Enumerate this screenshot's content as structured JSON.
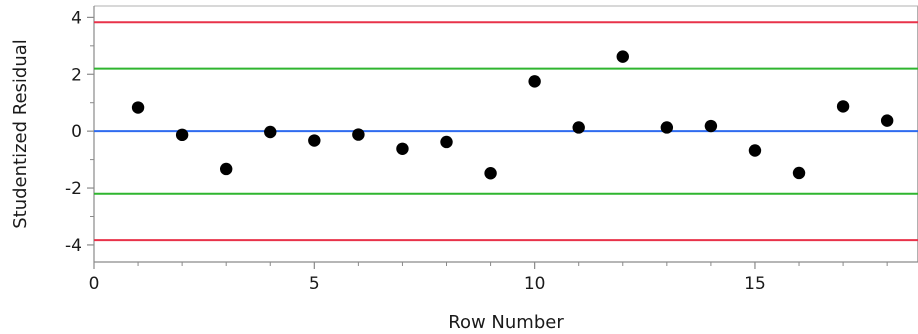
{
  "chart_data": {
    "type": "scatter",
    "xlabel": "Row Number",
    "ylabel": "Studentized Residual",
    "xlim": [
      0,
      18.7
    ],
    "ylim": [
      -4.6,
      4.4
    ],
    "x_ticks": [
      0,
      5,
      10,
      15
    ],
    "y_ticks": [
      -4,
      -2,
      0,
      2,
      4
    ],
    "grid": false,
    "reference_lines": [
      {
        "y": 3.83,
        "color": "#e8324a"
      },
      {
        "y": 2.2,
        "color": "#2fb52f"
      },
      {
        "y": 0,
        "color": "#2f6bef"
      },
      {
        "y": -2.2,
        "color": "#2fb52f"
      },
      {
        "y": -3.83,
        "color": "#e8324a"
      }
    ],
    "points": [
      {
        "x": 1,
        "y": 0.83
      },
      {
        "x": 2,
        "y": -0.13
      },
      {
        "x": 3,
        "y": -1.33
      },
      {
        "x": 4,
        "y": -0.03
      },
      {
        "x": 5,
        "y": -0.33
      },
      {
        "x": 6,
        "y": -0.12
      },
      {
        "x": 7,
        "y": -0.62
      },
      {
        "x": 8,
        "y": -0.38
      },
      {
        "x": 9,
        "y": -1.48
      },
      {
        "x": 10,
        "y": 1.75
      },
      {
        "x": 11,
        "y": 0.13
      },
      {
        "x": 12,
        "y": 2.62
      },
      {
        "x": 13,
        "y": 0.13
      },
      {
        "x": 14,
        "y": 0.18
      },
      {
        "x": 15,
        "y": -0.68
      },
      {
        "x": 16,
        "y": -1.47
      },
      {
        "x": 17,
        "y": 0.87
      },
      {
        "x": 18,
        "y": 0.37
      }
    ],
    "marker_color": "#000000"
  }
}
